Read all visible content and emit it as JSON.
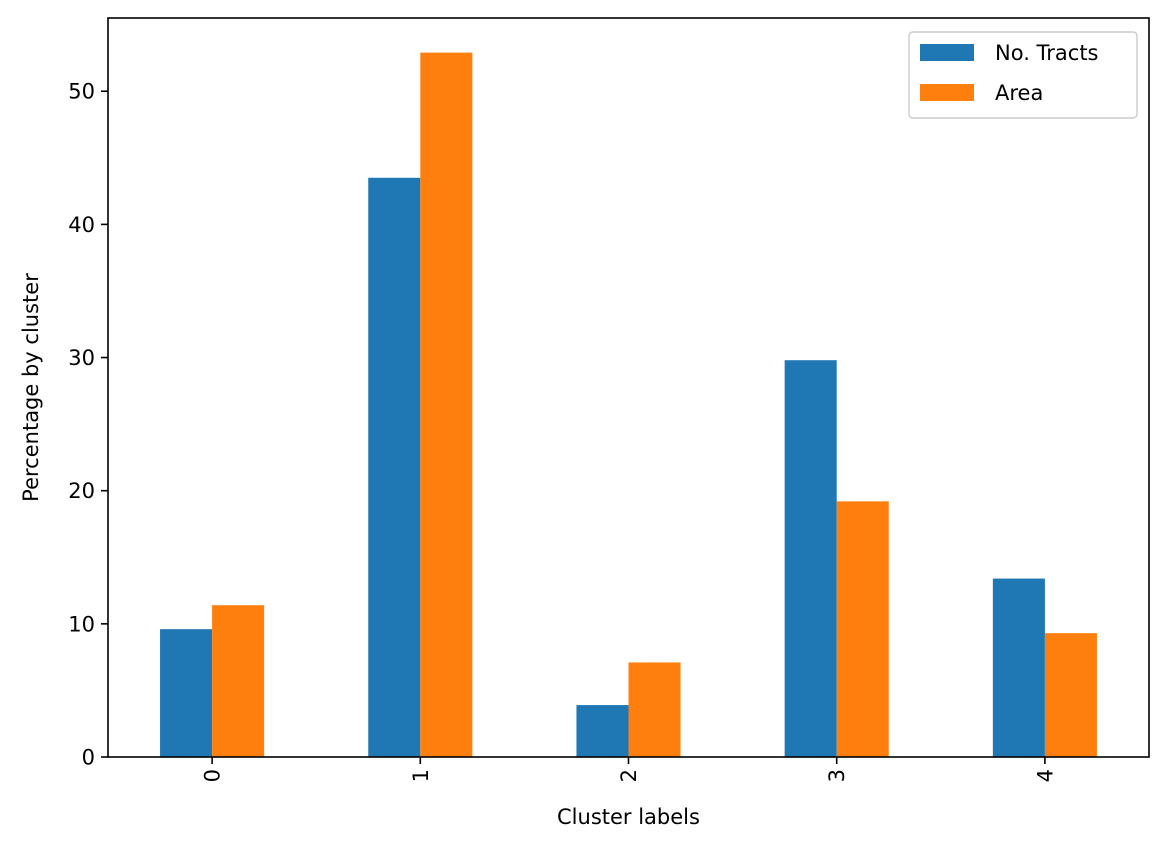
{
  "chart_data": {
    "type": "bar",
    "title": "",
    "xlabel": "Cluster labels",
    "ylabel": "Percentage by cluster",
    "categories": [
      "0",
      "1",
      "2",
      "3",
      "4"
    ],
    "series": [
      {
        "name": "No. Tracts",
        "color": "#1f77b4",
        "values": [
          9.6,
          43.5,
          3.9,
          29.8,
          13.4
        ]
      },
      {
        "name": "Area",
        "color": "#ff7f0e",
        "values": [
          11.4,
          52.9,
          7.1,
          19.2,
          9.3
        ]
      }
    ],
    "ylim": [
      0,
      55.5
    ],
    "yticks": [
      0,
      10,
      20,
      30,
      40,
      50
    ],
    "x_tick_rotation": 90,
    "grid": false,
    "legend_position": "top-right"
  }
}
